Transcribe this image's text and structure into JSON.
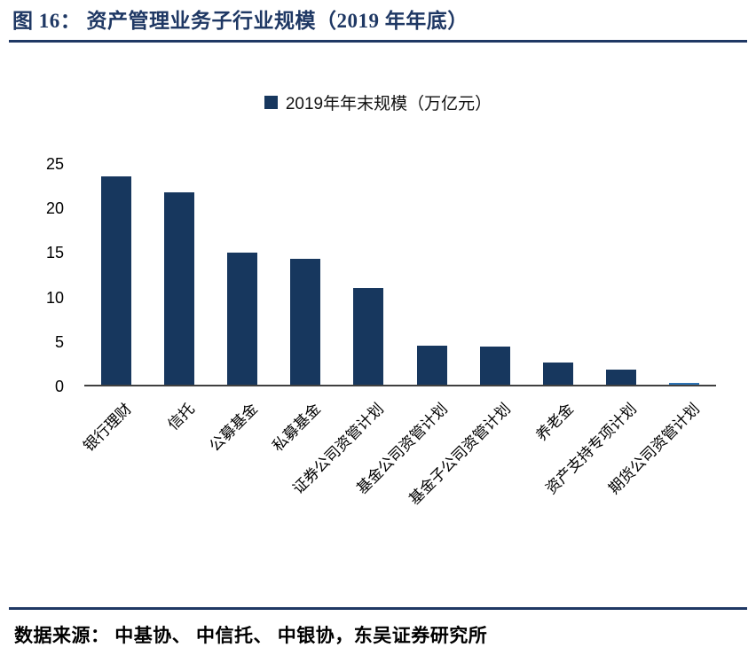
{
  "header": {
    "title": "图 16：  资产管理业务子行业规模（2019 年年底）"
  },
  "footer": {
    "source": "数据来源：  中基协、  中信托、  中银协，东吴证券研究所"
  },
  "colors": {
    "accent": "#1F3864",
    "bar": "#17375E",
    "last_bar": "#2E74B5"
  },
  "chart_data": {
    "type": "bar",
    "title": "",
    "legend": "2019年年末规模（万亿元）",
    "legend_position": "top-center",
    "categories": [
      "银行理财",
      "信托",
      "公募基金",
      "私募基金",
      "证券公司资管计划",
      "基金公司资管计划",
      "基金子公司资管计划",
      "养老金",
      "资产支持专项计划",
      "期货公司资管计划"
    ],
    "values": [
      23.4,
      21.6,
      14.8,
      14.1,
      10.9,
      4.4,
      4.3,
      2.5,
      1.7,
      0.25
    ],
    "xlabel": "",
    "ylabel": "",
    "ylim": [
      0,
      25
    ],
    "yticks": [
      0,
      5,
      10,
      15,
      20,
      25
    ],
    "grid": false,
    "bar_color": "#17375E",
    "last_bar_color": "#2E74B5"
  }
}
